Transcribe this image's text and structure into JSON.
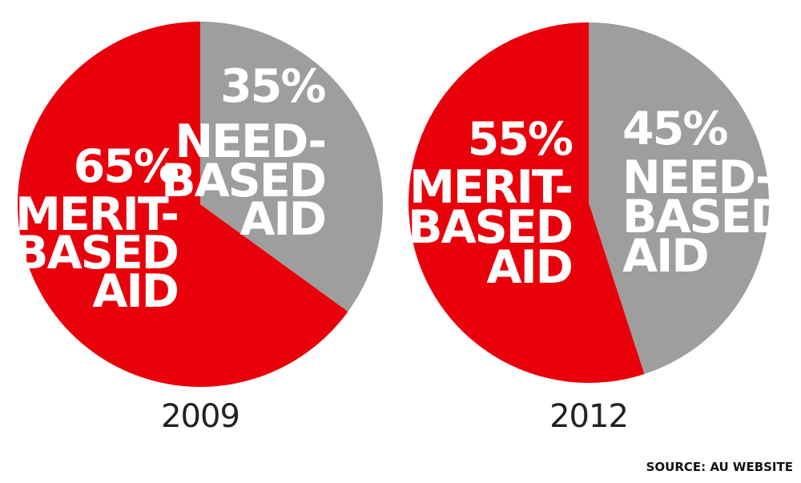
{
  "chart_data": [
    {
      "type": "pie",
      "title": "2009",
      "slices": [
        {
          "name": "merit",
          "label_lines": [
            "MERIT-",
            "BASED",
            "AID"
          ],
          "value": 65,
          "value_label": "65%",
          "color": "#e8000b"
        },
        {
          "name": "need",
          "label_lines": [
            "NEED-",
            "BASED",
            "AID"
          ],
          "value": 35,
          "value_label": "35%",
          "color": "#9e9e9e"
        }
      ]
    },
    {
      "type": "pie",
      "title": "2012",
      "slices": [
        {
          "name": "merit",
          "label_lines": [
            "MERIT-",
            "BASED",
            "AID"
          ],
          "value": 55,
          "value_label": "55%",
          "color": "#e8000b"
        },
        {
          "name": "need",
          "label_lines": [
            "NEED-",
            "BASED",
            "AID"
          ],
          "value": 45,
          "value_label": "45%",
          "color": "#9e9e9e"
        }
      ]
    }
  ],
  "source": "SOURCE: AU WEBSITE"
}
